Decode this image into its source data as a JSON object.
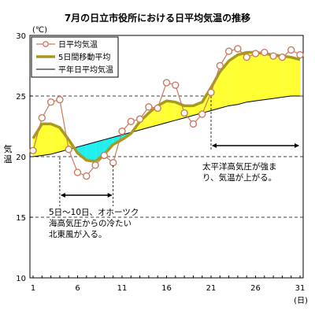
{
  "chart_data": {
    "type": "line",
    "title": "7月の日立市役所における日平均気温の推移",
    "ylabel_unit": "(℃)",
    "ylabel": "気温",
    "xlabel_unit": "(日)",
    "ylim": [
      10,
      30
    ],
    "xlim": [
      1,
      31
    ],
    "yticks": [
      10,
      15,
      20,
      25,
      30
    ],
    "xticks": [
      1,
      6,
      11,
      16,
      21,
      26,
      31
    ],
    "legend_position": "top-left",
    "series": [
      {
        "name": "日平均気温",
        "style": "line-with-open-circles",
        "color": "#cc7a60",
        "x": [
          1,
          2,
          3,
          4,
          5,
          6,
          7,
          8,
          9,
          10,
          11,
          12,
          13,
          14,
          15,
          16,
          17,
          18,
          19,
          20,
          21,
          22,
          23,
          24,
          25,
          26,
          27,
          28,
          29,
          30,
          31
        ],
        "values": [
          20.5,
          23.2,
          24.5,
          24.7,
          20.6,
          18.7,
          18.4,
          19.3,
          20.1,
          19.5,
          22.1,
          22.9,
          23.1,
          24.1,
          24.0,
          26.1,
          25.9,
          23.6,
          22.7,
          23.5,
          25.3,
          27.5,
          28.7,
          28.9,
          28.2,
          28.5,
          28.6,
          28.3,
          28.2,
          28.8,
          28.4
        ]
      },
      {
        "name": "5日間移動平均",
        "style": "thick-line",
        "color": "#a89a20",
        "x": [
          1,
          2,
          3,
          4,
          5,
          6,
          7,
          8,
          9,
          10,
          11,
          12,
          13,
          14,
          15,
          16,
          17,
          18,
          19,
          20,
          21,
          22,
          23,
          24,
          25,
          26,
          27,
          28,
          29,
          30,
          31
        ],
        "values": [
          21.5,
          22.7,
          22.7,
          22.4,
          21.4,
          20.3,
          19.7,
          19.6,
          20.2,
          21.0,
          21.4,
          21.9,
          22.9,
          23.6,
          24.2,
          24.6,
          24.5,
          24.2,
          24.2,
          24.5,
          25.7,
          27.0,
          27.9,
          28.4,
          28.6,
          28.6,
          28.5,
          28.4,
          28.3,
          28.2,
          28.0
        ]
      },
      {
        "name": "平年日平均気温",
        "style": "thin-line",
        "color": "#000000",
        "x": [
          1,
          2,
          3,
          4,
          5,
          6,
          7,
          8,
          9,
          10,
          11,
          12,
          13,
          14,
          15,
          16,
          17,
          18,
          19,
          20,
          21,
          22,
          23,
          24,
          25,
          26,
          27,
          28,
          29,
          30,
          31
        ],
        "values": [
          20.0,
          20.1,
          20.2,
          20.4,
          20.6,
          20.8,
          21.0,
          21.2,
          21.4,
          21.6,
          21.8,
          22.0,
          22.2,
          22.4,
          22.6,
          22.8,
          23.0,
          23.2,
          23.4,
          23.6,
          23.8,
          24.0,
          24.2,
          24.3,
          24.5,
          24.6,
          24.7,
          24.8,
          24.9,
          25.0,
          25.0
        ]
      }
    ],
    "fill_above_color": "#ffff33",
    "fill_below_color": "#22eeee",
    "annotations": [
      {
        "id": "cold",
        "lines": [
          "5日～10日、オホーツク",
          "海高気圧からの冷たい",
          "北東風が入る。"
        ],
        "arrow_range": [
          4,
          10
        ]
      },
      {
        "id": "warm",
        "lines": [
          "太平洋高気圧が強ま",
          "り、気温が上がる。"
        ],
        "arrow_range": [
          21,
          31
        ]
      }
    ]
  }
}
